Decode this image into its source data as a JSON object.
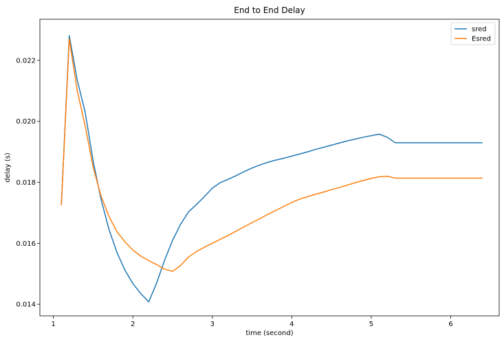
{
  "chart_data": {
    "type": "line",
    "title": "End to End Delay",
    "xlabel": "time (second)",
    "ylabel": "delay (s)",
    "xlim": [
      0.83,
      6.61
    ],
    "ylim": [
      0.01362,
      0.02335
    ],
    "xticks": [
      1,
      2,
      3,
      4,
      5,
      6
    ],
    "xtick_labels": [
      "1",
      "2",
      "3",
      "4",
      "5",
      "6"
    ],
    "yticks": [
      0.014,
      0.016,
      0.018,
      0.02,
      0.022
    ],
    "ytick_labels": [
      "0.014",
      "0.016",
      "0.018",
      "0.020",
      "0.022"
    ],
    "grid": false,
    "legend_position": "top-right",
    "series": [
      {
        "name": "sred",
        "color": "#1f77b4",
        "x": [
          1.1,
          1.2,
          1.3,
          1.4,
          1.5,
          1.6,
          1.7,
          1.8,
          1.9,
          2.0,
          2.1,
          2.2,
          2.3,
          2.4,
          2.5,
          2.6,
          2.7,
          2.8,
          2.9,
          3.0,
          3.1,
          3.2,
          3.3,
          3.4,
          3.5,
          3.6,
          3.7,
          3.8,
          3.9,
          4.0,
          4.1,
          4.2,
          4.3,
          4.4,
          4.5,
          4.6,
          4.7,
          4.8,
          4.9,
          5.0,
          5.1,
          5.2,
          5.3,
          5.4,
          5.5,
          5.6,
          5.7,
          5.8,
          5.9,
          6.0,
          6.1,
          6.2,
          6.3,
          6.4
        ],
        "y": [
          0.01725,
          0.02281,
          0.02135,
          0.0203,
          0.0187,
          0.01744,
          0.01645,
          0.0157,
          0.01512,
          0.01468,
          0.01435,
          0.01408,
          0.0147,
          0.01545,
          0.0161,
          0.01662,
          0.01703,
          0.01727,
          0.01753,
          0.01781,
          0.01799,
          0.0181,
          0.01822,
          0.01835,
          0.01847,
          0.01857,
          0.01866,
          0.01873,
          0.01879,
          0.01886,
          0.01893,
          0.019,
          0.01908,
          0.01915,
          0.01922,
          0.01929,
          0.01936,
          0.01942,
          0.01948,
          0.01953,
          0.01958,
          0.01948,
          0.0193,
          0.0193,
          0.0193,
          0.0193,
          0.0193,
          0.0193,
          0.0193,
          0.0193,
          0.0193,
          0.0193,
          0.0193,
          0.0193
        ]
      },
      {
        "name": "Esred",
        "color": "#ff7f0e",
        "x": [
          1.1,
          1.2,
          1.3,
          1.4,
          1.5,
          1.6,
          1.7,
          1.8,
          1.9,
          2.0,
          2.1,
          2.2,
          2.3,
          2.4,
          2.5,
          2.6,
          2.7,
          2.8,
          2.9,
          3.0,
          3.1,
          3.2,
          3.3,
          3.4,
          3.5,
          3.6,
          3.7,
          3.8,
          3.9,
          4.0,
          4.1,
          4.2,
          4.3,
          4.4,
          4.5,
          4.6,
          4.7,
          4.8,
          4.9,
          5.0,
          5.1,
          5.2,
          5.3,
          5.4,
          5.5,
          5.6,
          5.7,
          5.8,
          5.9,
          6.0,
          6.1,
          6.2,
          6.3,
          6.4
        ],
        "y": [
          0.01725,
          0.0227,
          0.021,
          0.01985,
          0.0185,
          0.01755,
          0.01688,
          0.01638,
          0.01605,
          0.01578,
          0.01558,
          0.01543,
          0.0153,
          0.01515,
          0.01508,
          0.01527,
          0.01555,
          0.01573,
          0.01587,
          0.016,
          0.01613,
          0.01626,
          0.0164,
          0.01654,
          0.01668,
          0.01681,
          0.01695,
          0.01708,
          0.01721,
          0.01734,
          0.01745,
          0.01753,
          0.01761,
          0.01768,
          0.01776,
          0.01783,
          0.01791,
          0.01799,
          0.01806,
          0.01813,
          0.01818,
          0.0182,
          0.01814,
          0.01814,
          0.01814,
          0.01814,
          0.01814,
          0.01814,
          0.01814,
          0.01814,
          0.01814,
          0.01814,
          0.01814,
          0.01814
        ]
      }
    ]
  }
}
